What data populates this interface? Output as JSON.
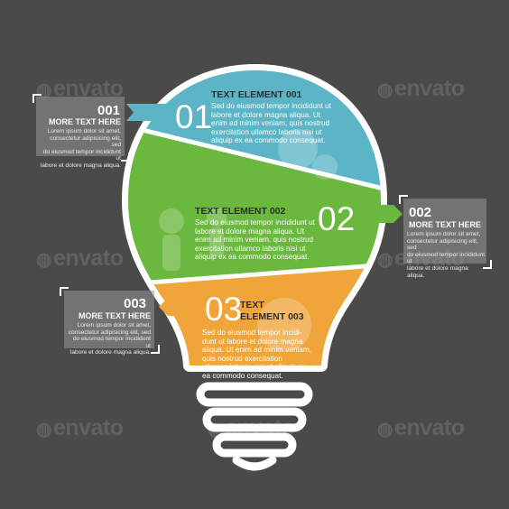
{
  "watermark": "envato",
  "colors": {
    "background": "#4a4a4a",
    "segment1": "#5cb5c6",
    "segment2": "#6ab83e",
    "segment3": "#f0a53a",
    "outline": "#ffffff",
    "info_box": "#8e8e8e"
  },
  "segments": [
    {
      "number": "01",
      "title": "TEXT ELEMENT 001",
      "body": [
        "Sed do eiusmod tempor incididunt ut",
        "labore et dolore magna aliqua. Ut",
        "enim ad minim veniam, quis nostrud",
        "exercitation ullamco laboris nisi ut",
        "aliquip ex ea commodo consequat."
      ]
    },
    {
      "number": "02",
      "title": "TEXT ELEMENT 002",
      "body": [
        "Sed do eiusmod tempor incididunt ut",
        "labore et dolore magna aliqua. Ut",
        "enim ad minim veniam, quis nostrud",
        "exercitation ullamco laboris nisi ut",
        "aliquip ex ea commodo consequat."
      ]
    },
    {
      "number": "03",
      "title": [
        "TEXT",
        "ELEMENT 003"
      ],
      "body": [
        "Sed do eiusmod tempor incidi-",
        "dunt ut labore et dolore magna",
        "aliqua. Ut enim ad minim veniam,",
        "quis nostrud exercitation",
        "ullamco laboris nisi ut aliquip ex",
        "ea commodo consequat."
      ]
    }
  ],
  "side_boxes": [
    {
      "number": "001",
      "subtitle": "MORE TEXT HERE",
      "body": [
        "Lorem ipsum dolor sit amet,",
        "consectetur adipisicing elit, sed",
        "do eiusmod tempor incididunt ut",
        "labore et dolore magna aliqua."
      ]
    },
    {
      "number": "002",
      "subtitle": "MORE TEXT HERE",
      "body": [
        "Lorem ipsum dolor sit amet,",
        "consectetur adipisicing elit, sed",
        "do eiusmod tempor incididunt ut",
        "labore et dolore magna aliqua."
      ]
    },
    {
      "number": "003",
      "subtitle": "MORE TEXT HERE",
      "body": [
        "Lorem ipsum dolor sit amet,",
        "consectetur adipisicing elit, sed",
        "do eiusmod tempor incididunt ut",
        "labore et dolore magna aliqua."
      ]
    }
  ]
}
